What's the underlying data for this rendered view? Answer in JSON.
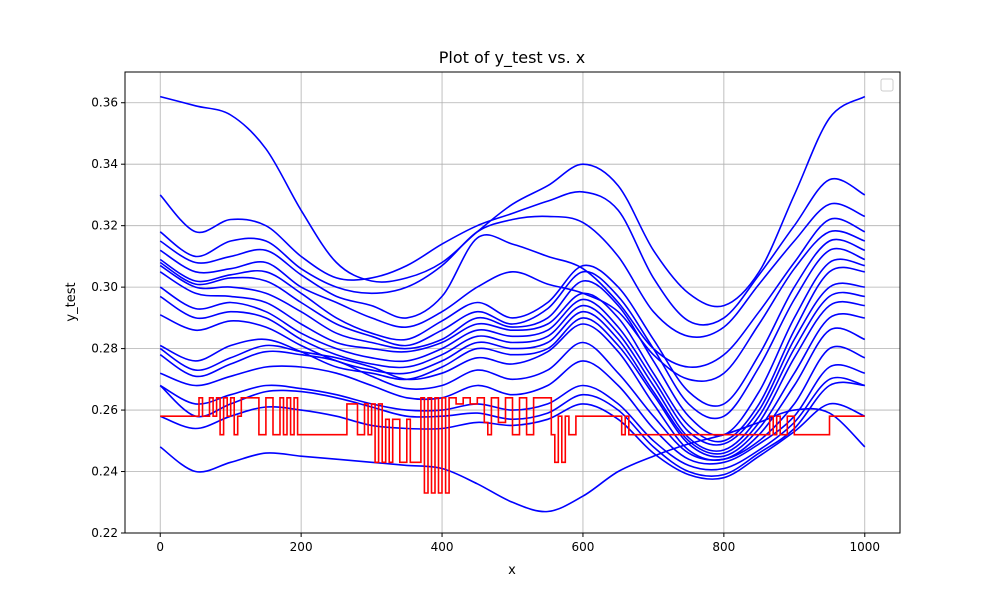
{
  "chart_data": {
    "type": "line",
    "title": "Plot of y_test vs. x",
    "xlabel": "x",
    "ylabel": "y_test",
    "xlim": [
      -50,
      1050
    ],
    "ylim": [
      0.22,
      0.37
    ],
    "x_ticks": [
      0,
      200,
      400,
      600,
      800,
      1000
    ],
    "y_ticks": [
      0.22,
      0.24,
      0.26,
      0.28,
      0.3,
      0.32,
      0.34,
      0.36
    ],
    "x_tick_labels": [
      "0",
      "200",
      "400",
      "600",
      "800",
      "1000"
    ],
    "y_tick_labels": [
      "0.22",
      "0.24",
      "0.26",
      "0.28",
      "0.30",
      "0.32",
      "0.34",
      "0.36"
    ],
    "grid": true,
    "legend": "top-right (empty)",
    "colors": {
      "blue_series": "#0000ff",
      "red_series": "#ff0000",
      "grid": "#b0b0b0"
    },
    "blue_series": [
      {
        "x": [
          0,
          50,
          100,
          150,
          200,
          250,
          300,
          350,
          400,
          450,
          500,
          550,
          600,
          650,
          700,
          750,
          800,
          850,
          900,
          950,
          1000
        ],
        "y": [
          0.362,
          0.359,
          0.356,
          0.345,
          0.325,
          0.308,
          0.302,
          0.303,
          0.308,
          0.318,
          0.327,
          0.333,
          0.34,
          0.333,
          0.312,
          0.298,
          0.294,
          0.305,
          0.33,
          0.355,
          0.362
        ]
      },
      {
        "x": [
          0,
          50,
          100,
          150,
          200,
          250,
          300,
          350,
          400,
          450,
          500,
          550,
          600,
          650,
          700,
          750,
          800,
          850,
          900,
          950,
          1000
        ],
        "y": [
          0.33,
          0.318,
          0.322,
          0.32,
          0.31,
          0.303,
          0.303,
          0.307,
          0.314,
          0.32,
          0.324,
          0.328,
          0.331,
          0.325,
          0.303,
          0.289,
          0.29,
          0.304,
          0.32,
          0.335,
          0.33
        ]
      },
      {
        "x": [
          0,
          50,
          100,
          150,
          200,
          250,
          300,
          350,
          400,
          450,
          500,
          550,
          600,
          650,
          700,
          750,
          800,
          850,
          900,
          950,
          1000
        ],
        "y": [
          0.318,
          0.31,
          0.315,
          0.315,
          0.306,
          0.3,
          0.298,
          0.3,
          0.307,
          0.318,
          0.322,
          0.323,
          0.321,
          0.31,
          0.292,
          0.284,
          0.287,
          0.301,
          0.315,
          0.327,
          0.323
        ]
      },
      {
        "x": [
          0,
          50,
          100,
          150,
          200,
          250,
          300,
          350,
          400,
          450,
          500,
          550,
          600,
          650,
          700,
          750,
          800,
          850,
          900,
          950,
          1000
        ],
        "y": [
          0.315,
          0.308,
          0.31,
          0.312,
          0.304,
          0.297,
          0.294,
          0.29,
          0.297,
          0.316,
          0.314,
          0.31,
          0.306,
          0.295,
          0.28,
          0.274,
          0.278,
          0.292,
          0.308,
          0.322,
          0.318
        ]
      },
      {
        "x": [
          0,
          50,
          100,
          150,
          200,
          250,
          300,
          350,
          400,
          450,
          500,
          550,
          600,
          650,
          700,
          750,
          800,
          850,
          900,
          950,
          1000
        ],
        "y": [
          0.312,
          0.305,
          0.306,
          0.308,
          0.3,
          0.295,
          0.29,
          0.287,
          0.292,
          0.3,
          0.305,
          0.301,
          0.298,
          0.292,
          0.278,
          0.27,
          0.272,
          0.288,
          0.306,
          0.318,
          0.315
        ]
      },
      {
        "x": [
          0,
          50,
          100,
          150,
          200,
          250,
          300,
          350,
          400,
          450,
          500,
          550,
          600,
          650,
          700,
          750,
          800,
          850,
          900,
          950,
          1000
        ],
        "y": [
          0.309,
          0.302,
          0.304,
          0.305,
          0.298,
          0.29,
          0.285,
          0.283,
          0.289,
          0.295,
          0.29,
          0.295,
          0.307,
          0.3,
          0.283,
          0.266,
          0.262,
          0.278,
          0.3,
          0.315,
          0.312
        ]
      },
      {
        "x": [
          0,
          50,
          100,
          150,
          200,
          250,
          300,
          350,
          400,
          450,
          500,
          550,
          600,
          650,
          700,
          750,
          800,
          850,
          900,
          950,
          1000
        ],
        "y": [
          0.308,
          0.301,
          0.303,
          0.302,
          0.295,
          0.288,
          0.284,
          0.281,
          0.286,
          0.292,
          0.288,
          0.293,
          0.305,
          0.297,
          0.28,
          0.262,
          0.258,
          0.274,
          0.296,
          0.312,
          0.309
        ]
      },
      {
        "x": [
          0,
          50,
          100,
          150,
          200,
          250,
          300,
          350,
          400,
          450,
          500,
          550,
          600,
          650,
          700,
          750,
          800,
          850,
          900,
          950,
          1000
        ],
        "y": [
          0.307,
          0.3,
          0.3,
          0.298,
          0.292,
          0.285,
          0.282,
          0.28,
          0.283,
          0.29,
          0.287,
          0.29,
          0.302,
          0.294,
          0.276,
          0.258,
          0.252,
          0.266,
          0.29,
          0.308,
          0.307
        ]
      },
      {
        "x": [
          0,
          50,
          100,
          150,
          200,
          250,
          300,
          350,
          400,
          450,
          500,
          550,
          600,
          650,
          700,
          750,
          800,
          850,
          900,
          950,
          1000
        ],
        "y": [
          0.305,
          0.298,
          0.297,
          0.295,
          0.288,
          0.282,
          0.28,
          0.279,
          0.282,
          0.288,
          0.286,
          0.288,
          0.298,
          0.29,
          0.272,
          0.255,
          0.25,
          0.262,
          0.286,
          0.305,
          0.305
        ]
      },
      {
        "x": [
          0,
          50,
          100,
          150,
          200,
          250,
          300,
          350,
          400,
          450,
          500,
          550,
          600,
          650,
          700,
          750,
          800,
          850,
          900,
          950,
          1000
        ],
        "y": [
          0.3,
          0.293,
          0.295,
          0.292,
          0.285,
          0.28,
          0.277,
          0.276,
          0.28,
          0.286,
          0.284,
          0.286,
          0.296,
          0.287,
          0.27,
          0.253,
          0.249,
          0.26,
          0.283,
          0.3,
          0.3
        ]
      },
      {
        "x": [
          0,
          50,
          100,
          150,
          200,
          250,
          300,
          350,
          400,
          450,
          500,
          550,
          600,
          650,
          700,
          750,
          800,
          850,
          900,
          950,
          1000
        ],
        "y": [
          0.297,
          0.29,
          0.292,
          0.29,
          0.283,
          0.278,
          0.275,
          0.274,
          0.278,
          0.284,
          0.282,
          0.284,
          0.294,
          0.285,
          0.268,
          0.251,
          0.247,
          0.258,
          0.28,
          0.297,
          0.297
        ]
      },
      {
        "x": [
          0,
          50,
          100,
          150,
          200,
          250,
          300,
          350,
          400,
          450,
          500,
          550,
          600,
          650,
          700,
          750,
          800,
          850,
          900,
          950,
          1000
        ],
        "y": [
          0.291,
          0.286,
          0.289,
          0.287,
          0.281,
          0.276,
          0.273,
          0.272,
          0.276,
          0.282,
          0.28,
          0.282,
          0.292,
          0.283,
          0.266,
          0.25,
          0.246,
          0.256,
          0.277,
          0.294,
          0.294
        ]
      },
      {
        "x": [
          0,
          50,
          100,
          150,
          200,
          250,
          300,
          350,
          400,
          450,
          500,
          550,
          600,
          650,
          700,
          750,
          800,
          850,
          900,
          950,
          1000
        ],
        "y": [
          0.281,
          0.276,
          0.281,
          0.283,
          0.279,
          0.274,
          0.272,
          0.27,
          0.274,
          0.28,
          0.278,
          0.28,
          0.29,
          0.281,
          0.265,
          0.249,
          0.245,
          0.254,
          0.272,
          0.29,
          0.29
        ]
      },
      {
        "x": [
          0,
          50,
          100,
          150,
          200,
          250,
          300,
          350,
          400,
          450,
          500,
          550,
          600,
          650,
          700,
          750,
          800,
          850,
          900,
          950,
          1000
        ],
        "y": [
          0.28,
          0.273,
          0.277,
          0.281,
          0.279,
          0.277,
          0.274,
          0.27,
          0.272,
          0.277,
          0.275,
          0.279,
          0.288,
          0.279,
          0.262,
          0.247,
          0.244,
          0.252,
          0.268,
          0.286,
          0.283
        ]
      },
      {
        "x": [
          0,
          50,
          100,
          150,
          200,
          250,
          300,
          350,
          400,
          450,
          500,
          550,
          600,
          650,
          700,
          750,
          800,
          850,
          900,
          950,
          1000
        ],
        "y": [
          0.278,
          0.271,
          0.275,
          0.279,
          0.278,
          0.276,
          0.271,
          0.267,
          0.268,
          0.273,
          0.27,
          0.273,
          0.282,
          0.272,
          0.258,
          0.246,
          0.244,
          0.25,
          0.262,
          0.28,
          0.277
        ]
      },
      {
        "x": [
          0,
          50,
          100,
          150,
          200,
          250,
          300,
          350,
          400,
          450,
          500,
          550,
          600,
          650,
          700,
          750,
          800,
          850,
          900,
          950,
          1000
        ],
        "y": [
          0.272,
          0.268,
          0.271,
          0.274,
          0.274,
          0.272,
          0.268,
          0.264,
          0.264,
          0.268,
          0.265,
          0.268,
          0.276,
          0.268,
          0.254,
          0.244,
          0.243,
          0.249,
          0.258,
          0.274,
          0.272
        ]
      },
      {
        "x": [
          0,
          50,
          100,
          150,
          200,
          250,
          300,
          350,
          400,
          450,
          500,
          550,
          600,
          650,
          700,
          750,
          800,
          850,
          900,
          950,
          1000
        ],
        "y": [
          0.268,
          0.262,
          0.265,
          0.268,
          0.267,
          0.265,
          0.262,
          0.26,
          0.26,
          0.262,
          0.26,
          0.262,
          0.268,
          0.262,
          0.25,
          0.242,
          0.241,
          0.247,
          0.256,
          0.27,
          0.268
        ]
      },
      {
        "x": [
          0,
          50,
          100,
          150,
          200,
          250,
          300,
          350,
          400,
          450,
          500,
          550,
          600,
          650,
          700,
          750,
          800,
          850,
          900,
          950,
          1000
        ],
        "y": [
          0.268,
          0.258,
          0.262,
          0.266,
          0.266,
          0.264,
          0.261,
          0.258,
          0.258,
          0.259,
          0.257,
          0.259,
          0.265,
          0.26,
          0.248,
          0.24,
          0.239,
          0.246,
          0.254,
          0.268,
          0.268
        ]
      },
      {
        "x": [
          0,
          50,
          100,
          150,
          200,
          250,
          300,
          350,
          400,
          450,
          500,
          550,
          600,
          650,
          700,
          750,
          800,
          850,
          900,
          950,
          1000
        ],
        "y": [
          0.258,
          0.254,
          0.258,
          0.261,
          0.26,
          0.258,
          0.255,
          0.254,
          0.254,
          0.256,
          0.255,
          0.257,
          0.262,
          0.257,
          0.246,
          0.239,
          0.238,
          0.245,
          0.253,
          0.262,
          0.258
        ]
      },
      {
        "x": [
          0,
          50,
          100,
          150,
          200,
          250,
          300,
          350,
          400,
          450,
          500,
          550,
          600,
          650,
          700,
          750,
          800,
          850,
          900,
          950,
          1000
        ],
        "y": [
          0.248,
          0.24,
          0.243,
          0.246,
          0.245,
          0.244,
          0.243,
          0.242,
          0.241,
          0.236,
          0.23,
          0.227,
          0.232,
          0.24,
          0.245,
          0.249,
          0.252,
          0.256,
          0.26,
          0.259,
          0.248
        ]
      }
    ],
    "red_series": {
      "x": [
        0,
        40,
        50,
        55,
        60,
        70,
        75,
        80,
        85,
        90,
        95,
        100,
        105,
        110,
        115,
        120,
        130,
        140,
        150,
        160,
        170,
        175,
        180,
        185,
        190,
        195,
        200,
        260,
        265,
        270,
        280,
        290,
        295,
        300,
        305,
        310,
        315,
        320,
        325,
        330,
        340,
        350,
        355,
        370,
        375,
        380,
        385,
        390,
        395,
        400,
        405,
        410,
        420,
        430,
        440,
        450,
        460,
        465,
        470,
        480,
        490,
        500,
        510,
        520,
        530,
        555,
        560,
        565,
        570,
        575,
        580,
        590,
        620,
        650,
        655,
        660,
        665,
        700,
        760,
        800,
        860,
        865,
        870,
        875,
        880,
        890,
        900,
        950,
        1000
      ],
      "y": [
        0.258,
        0.258,
        0.258,
        0.264,
        0.258,
        0.264,
        0.258,
        0.264,
        0.252,
        0.264,
        0.258,
        0.264,
        0.252,
        0.258,
        0.264,
        0.264,
        0.264,
        0.252,
        0.264,
        0.252,
        0.264,
        0.252,
        0.264,
        0.252,
        0.264,
        0.252,
        0.252,
        0.252,
        0.262,
        0.262,
        0.252,
        0.262,
        0.252,
        0.262,
        0.243,
        0.262,
        0.243,
        0.257,
        0.243,
        0.257,
        0.243,
        0.257,
        0.243,
        0.264,
        0.233,
        0.264,
        0.233,
        0.264,
        0.233,
        0.264,
        0.233,
        0.264,
        0.262,
        0.264,
        0.262,
        0.264,
        0.256,
        0.252,
        0.264,
        0.256,
        0.264,
        0.252,
        0.264,
        0.252,
        0.264,
        0.252,
        0.243,
        0.258,
        0.243,
        0.258,
        0.252,
        0.258,
        0.258,
        0.258,
        0.252,
        0.258,
        0.252,
        0.252,
        0.252,
        0.252,
        0.252,
        0.258,
        0.252,
        0.258,
        0.252,
        0.258,
        0.252,
        0.258,
        0.258
      ]
    }
  }
}
